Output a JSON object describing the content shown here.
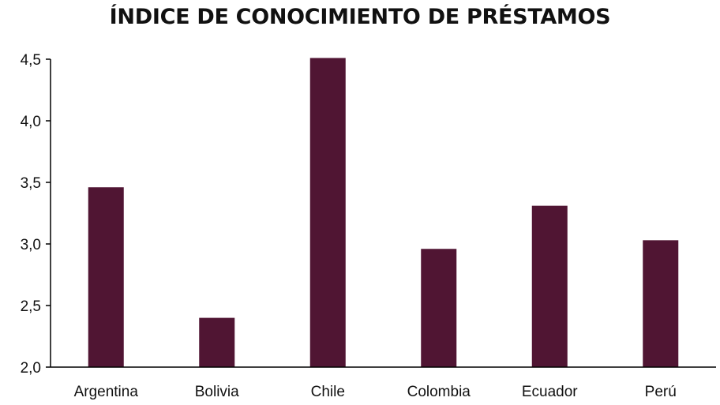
{
  "chart_data": {
    "type": "bar",
    "title": "ÍNDICE DE CONOCIMIENTO DE PRÉSTAMOS",
    "xlabel": "",
    "ylabel": "",
    "categories": [
      "Argentina",
      "Bolivia",
      "Chile",
      "Colombia",
      "Ecuador",
      "Perú"
    ],
    "values": [
      3.46,
      2.4,
      4.51,
      2.96,
      3.31,
      3.03
    ],
    "ylim": [
      2.0,
      4.5
    ],
    "yticks": [
      "2,0",
      "2,5",
      "3,0",
      "3,5",
      "4,0",
      "4,5"
    ],
    "ytick_values": [
      2.0,
      2.5,
      3.0,
      3.5,
      4.0,
      4.5
    ],
    "grid": false,
    "legend": "none",
    "bar_color": "#501533"
  }
}
